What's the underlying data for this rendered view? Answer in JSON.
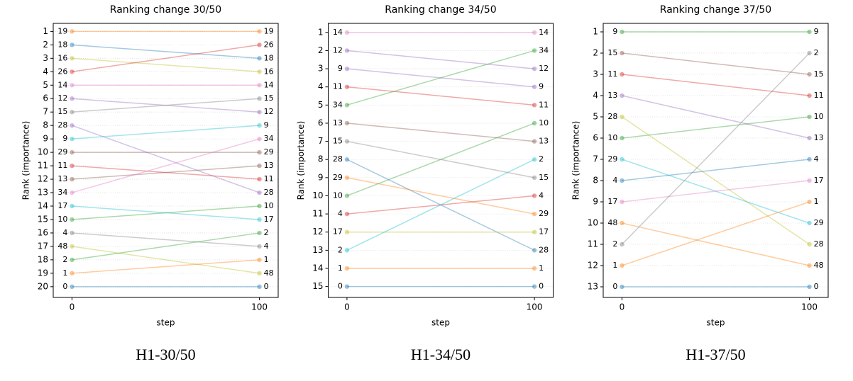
{
  "chart_data": [
    {
      "type": "line",
      "title": "Ranking change 30/50",
      "xlabel": "step",
      "ylabel": "Rank (importance)",
      "caption": "H1-30/50",
      "x": [
        0,
        100
      ],
      "xlim": [
        -10,
        110
      ],
      "xticks": [
        0,
        100
      ],
      "ylim": [
        20.8,
        0.4
      ],
      "yticks": [
        1,
        2,
        3,
        4,
        5,
        6,
        7,
        8,
        9,
        10,
        11,
        12,
        13,
        14,
        15,
        16,
        17,
        18,
        19,
        20
      ],
      "grid": true,
      "series": [
        {
          "name": "19",
          "color": "#ff7f0e",
          "values": [
            1,
            1
          ]
        },
        {
          "name": "18",
          "color": "#1f77b4",
          "values": [
            2,
            3
          ]
        },
        {
          "name": "16",
          "color": "#bcbd22",
          "values": [
            3,
            4
          ]
        },
        {
          "name": "26",
          "color": "#d62728",
          "values": [
            4,
            2
          ]
        },
        {
          "name": "14",
          "color": "#e377c2",
          "values": [
            5,
            5
          ]
        },
        {
          "name": "12",
          "color": "#9467bd",
          "values": [
            6,
            7
          ]
        },
        {
          "name": "15",
          "color": "#7f7f7f",
          "values": [
            7,
            6
          ]
        },
        {
          "name": "28",
          "color": "#9467bd",
          "values": [
            8,
            13
          ]
        },
        {
          "name": "9",
          "color": "#17becf",
          "values": [
            9,
            8
          ]
        },
        {
          "name": "29",
          "color": "#8c564b",
          "values": [
            10,
            10
          ]
        },
        {
          "name": "11",
          "color": "#d62728",
          "values": [
            11,
            12
          ]
        },
        {
          "name": "13",
          "color": "#8c564b",
          "values": [
            12,
            11
          ]
        },
        {
          "name": "34",
          "color": "#e377c2",
          "values": [
            13,
            9
          ]
        },
        {
          "name": "17",
          "color": "#17becf",
          "values": [
            14,
            15
          ]
        },
        {
          "name": "10",
          "color": "#2ca02c",
          "values": [
            15,
            14
          ]
        },
        {
          "name": "4",
          "color": "#7f7f7f",
          "values": [
            16,
            17
          ]
        },
        {
          "name": "48",
          "color": "#bcbd22",
          "values": [
            17,
            19
          ]
        },
        {
          "name": "2",
          "color": "#2ca02c",
          "values": [
            18,
            16
          ]
        },
        {
          "name": "1",
          "color": "#ff7f0e",
          "values": [
            19,
            18
          ]
        },
        {
          "name": "0",
          "color": "#1f77b4",
          "values": [
            20,
            20
          ]
        }
      ]
    },
    {
      "type": "line",
      "title": "Ranking change 34/50",
      "xlabel": "step",
      "ylabel": "Rank (importance)",
      "caption": "H1-34/50",
      "x": [
        0,
        100
      ],
      "xlim": [
        -10,
        110
      ],
      "xticks": [
        0,
        100
      ],
      "ylim": [
        15.6,
        0.5
      ],
      "yticks": [
        1,
        2,
        3,
        4,
        5,
        6,
        7,
        8,
        9,
        10,
        11,
        12,
        13,
        14,
        15
      ],
      "grid": true,
      "series": [
        {
          "name": "14",
          "color": "#e377c2",
          "values": [
            1,
            1
          ]
        },
        {
          "name": "12",
          "color": "#9467bd",
          "values": [
            2,
            3
          ]
        },
        {
          "name": "9",
          "color": "#9467bd",
          "values": [
            3,
            4
          ]
        },
        {
          "name": "11",
          "color": "#d62728",
          "values": [
            4,
            5
          ]
        },
        {
          "name": "34",
          "color": "#2ca02c",
          "values": [
            5,
            2
          ]
        },
        {
          "name": "13",
          "color": "#8c564b",
          "values": [
            6,
            7
          ]
        },
        {
          "name": "15",
          "color": "#7f7f7f",
          "values": [
            7,
            9
          ]
        },
        {
          "name": "28",
          "color": "#1f77b4",
          "values": [
            8,
            13
          ]
        },
        {
          "name": "29",
          "color": "#ff7f0e",
          "values": [
            9,
            11
          ]
        },
        {
          "name": "10",
          "color": "#2ca02c",
          "values": [
            10,
            6
          ]
        },
        {
          "name": "4",
          "color": "#d62728",
          "values": [
            11,
            10
          ]
        },
        {
          "name": "17",
          "color": "#bcbd22",
          "values": [
            12,
            12
          ]
        },
        {
          "name": "2",
          "color": "#17becf",
          "values": [
            13,
            8
          ]
        },
        {
          "name": "1",
          "color": "#ff7f0e",
          "values": [
            14,
            14
          ]
        },
        {
          "name": "0",
          "color": "#1f77b4",
          "values": [
            15,
            15
          ]
        }
      ]
    },
    {
      "type": "line",
      "title": "Ranking change 37/50",
      "xlabel": "step",
      "ylabel": "Rank (importance)",
      "caption": "H1-37/50",
      "x": [
        0,
        100
      ],
      "xlim": [
        -10,
        110
      ],
      "xticks": [
        0,
        100
      ],
      "ylim": [
        13.5,
        0.6
      ],
      "yticks": [
        1,
        2,
        3,
        4,
        5,
        6,
        7,
        8,
        9,
        10,
        11,
        12,
        13
      ],
      "grid": true,
      "series": [
        {
          "name": "9",
          "color": "#2ca02c",
          "values": [
            1,
            1
          ]
        },
        {
          "name": "15",
          "color": "#8c564b",
          "values": [
            2,
            3
          ]
        },
        {
          "name": "11",
          "color": "#d62728",
          "values": [
            3,
            4
          ]
        },
        {
          "name": "13",
          "color": "#9467bd",
          "values": [
            4,
            6
          ]
        },
        {
          "name": "28",
          "color": "#bcbd22",
          "values": [
            5,
            11
          ]
        },
        {
          "name": "10",
          "color": "#2ca02c",
          "values": [
            6,
            5
          ]
        },
        {
          "name": "29",
          "color": "#17becf",
          "values": [
            7,
            10
          ]
        },
        {
          "name": "4",
          "color": "#1f77b4",
          "values": [
            8,
            7
          ]
        },
        {
          "name": "17",
          "color": "#e377c2",
          "values": [
            9,
            8
          ]
        },
        {
          "name": "48",
          "color": "#ff7f0e",
          "values": [
            10,
            12
          ]
        },
        {
          "name": "2",
          "color": "#7f7f7f",
          "values": [
            11,
            2
          ]
        },
        {
          "name": "1",
          "color": "#ff7f0e",
          "values": [
            12,
            9
          ]
        },
        {
          "name": "0",
          "color": "#1f77b4",
          "values": [
            13,
            13
          ]
        }
      ]
    }
  ]
}
